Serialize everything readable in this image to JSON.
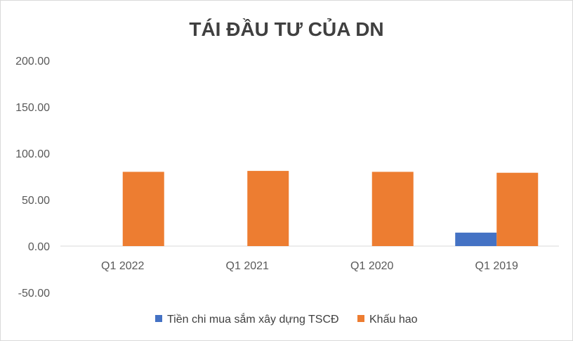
{
  "chart_data": {
    "type": "bar",
    "title": "TÁI ĐẦU TƯ CỦA DN",
    "categories": [
      "Q1 2022",
      "Q1 2021",
      "Q1 2020",
      "Q1 2019"
    ],
    "series": [
      {
        "name": "Tiền chi mua sắm xây dựng TSCĐ",
        "values": [
          0,
          0,
          0,
          14.5
        ],
        "color": "#4472C4"
      },
      {
        "name": "Khấu hao",
        "values": [
          80,
          81,
          80,
          79
        ],
        "color": "#ED7D31"
      }
    ],
    "ylim": [
      -50,
      200
    ],
    "yticks": [
      200,
      150,
      100,
      50,
      0,
      -50
    ],
    "ytick_labels": [
      "200.00",
      "150.00",
      "100.00",
      "50.00",
      "0.00",
      "-50.00"
    ],
    "grid": false,
    "legend_position": "bottom"
  }
}
